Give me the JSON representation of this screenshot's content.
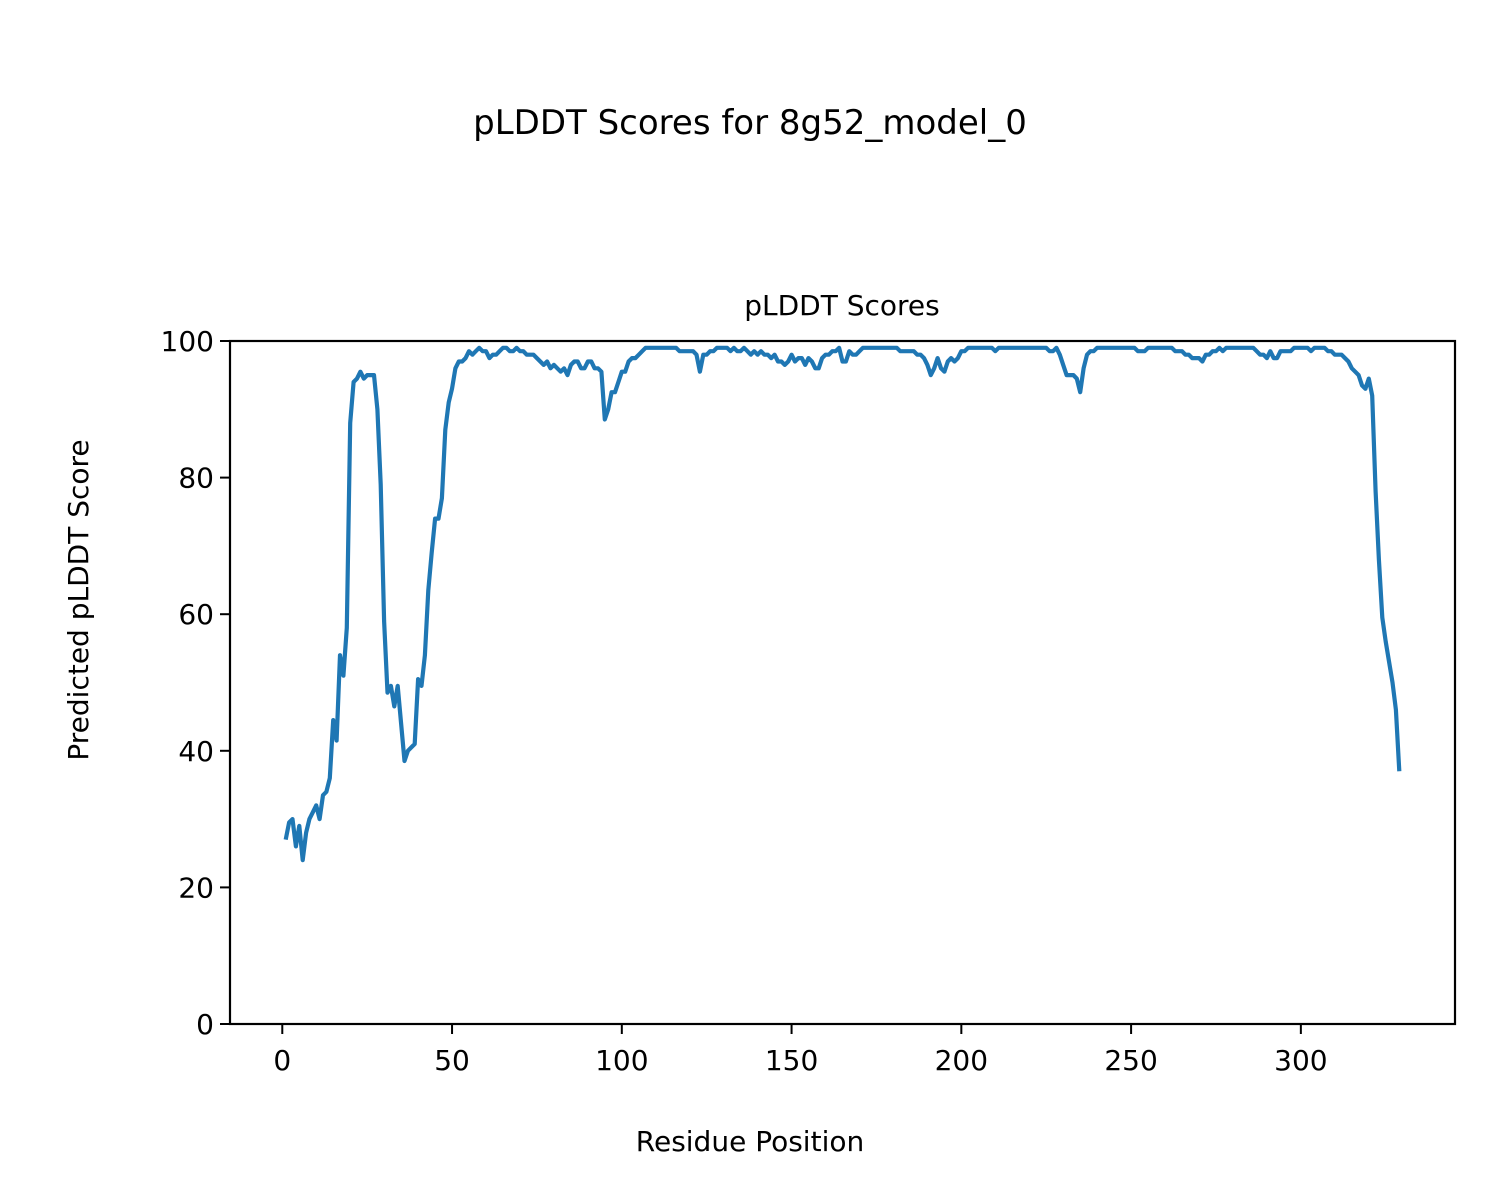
{
  "chart_data": {
    "type": "line",
    "suptitle": "pLDDT Scores for 8g52_model_0",
    "title": "pLDDT Scores",
    "xlabel": "Residue Position",
    "ylabel": "Predicted pLDDT Score",
    "xlim": [
      -15.4,
      345.4
    ],
    "ylim": [
      0,
      100
    ],
    "xticks": [
      0,
      50,
      100,
      150,
      200,
      250,
      300
    ],
    "yticks": [
      0,
      20,
      40,
      60,
      80,
      100
    ],
    "grid": false,
    "series": [
      {
        "name": "pLDDT",
        "color": "#1f77b4",
        "x_start": 1,
        "y": [
          27,
          29.5,
          30,
          26,
          29,
          24,
          28,
          30,
          31,
          32,
          30,
          33.5,
          34,
          36,
          44.5,
          41.5,
          54,
          51,
          58,
          88,
          94,
          94.5,
          95.5,
          94.5,
          95,
          95,
          95,
          90,
          79,
          59,
          48.5,
          49.5,
          46.5,
          49.5,
          44,
          38.5,
          40,
          40.5,
          41,
          50.5,
          49.5,
          54,
          63.5,
          69,
          74,
          74,
          77,
          87,
          91,
          93,
          96,
          97,
          97,
          97.5,
          98.5,
          98,
          98.5,
          99,
          98.5,
          98.5,
          97.5,
          98,
          98,
          98.5,
          99,
          99,
          98.5,
          98.5,
          99,
          98.5,
          98.5,
          98,
          98,
          98,
          97.5,
          97,
          96.5,
          97,
          96,
          96.5,
          96,
          95.5,
          96,
          95,
          96.5,
          97,
          97,
          96,
          96,
          97,
          97,
          96,
          96,
          95.5,
          88.5,
          90,
          92.5,
          92.5,
          94,
          95.5,
          95.5,
          97,
          97.5,
          97.5,
          98,
          98.5,
          99,
          99,
          99,
          99,
          99,
          99,
          99,
          99,
          99,
          99,
          98.5,
          98.5,
          98.5,
          98.5,
          98.5,
          98,
          95.5,
          98,
          98,
          98.5,
          98.5,
          99,
          99,
          99,
          99,
          98.5,
          99,
          98.5,
          98.5,
          99,
          98.5,
          98,
          98.5,
          98,
          98.5,
          98,
          98,
          97.5,
          98,
          97,
          97,
          96.5,
          97,
          98,
          97,
          97.5,
          97.5,
          96.5,
          97.5,
          97,
          96,
          96,
          97.5,
          98,
          98,
          98.5,
          98.5,
          99,
          97,
          97,
          98.5,
          98,
          98,
          98.5,
          99,
          99,
          99,
          99,
          99,
          99,
          99,
          99,
          99,
          99,
          99,
          98.5,
          98.5,
          98.5,
          98.5,
          98.5,
          98,
          98,
          97.5,
          96.5,
          95,
          96,
          97.5,
          96,
          95.5,
          97,
          97.5,
          97,
          97.5,
          98.5,
          98.5,
          99,
          99,
          99,
          99,
          99,
          99,
          99,
          99,
          98.5,
          99,
          99,
          99,
          99,
          99,
          99,
          99,
          99,
          99,
          99,
          99,
          99,
          99,
          99,
          99,
          98.5,
          98.5,
          99,
          98,
          96.5,
          95,
          95,
          95,
          94.5,
          92.5,
          96,
          98,
          98.5,
          98.5,
          99,
          99,
          99,
          99,
          99,
          99,
          99,
          99,
          99,
          99,
          99,
          99,
          98.5,
          98.5,
          98.5,
          99,
          99,
          99,
          99,
          99,
          99,
          99,
          99,
          98.5,
          98.5,
          98.5,
          98,
          98,
          97.5,
          97.5,
          97.5,
          97,
          98,
          98,
          98.5,
          98.5,
          99,
          98.5,
          99,
          99,
          99,
          99,
          99,
          99,
          99,
          99,
          99,
          98.5,
          98,
          98,
          97.5,
          98.5,
          97.5,
          97.5,
          98.5,
          98.5,
          98.5,
          98.5,
          99,
          99,
          99,
          99,
          99,
          98.5,
          99,
          99,
          99,
          99,
          98.5,
          98.5,
          98,
          98,
          98,
          97.5,
          97,
          96,
          95.5,
          95,
          93.5,
          93,
          94.5,
          92,
          78,
          68,
          59.5,
          56,
          53,
          50,
          46,
          37
        ]
      }
    ]
  }
}
